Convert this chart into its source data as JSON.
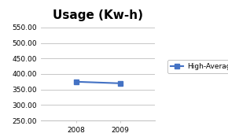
{
  "title": "Usage (Kw-h)",
  "x": [
    2008,
    2009
  ],
  "y": [
    375,
    370
  ],
  "line_color": "#4472C4",
  "marker": "s",
  "marker_size": 4,
  "legend_label": "High-Average-Low",
  "xlim": [
    2007.2,
    2009.8
  ],
  "ylim": [
    250,
    550
  ],
  "yticks": [
    250,
    300,
    350,
    400,
    450,
    500,
    550
  ],
  "ytick_labels": [
    "250.00",
    "300.00",
    "350.00",
    "400.00",
    "450.00",
    "500.00",
    "550.00"
  ],
  "xticks": [
    2008,
    2009
  ],
  "title_fontsize": 11,
  "tick_fontsize": 6.5,
  "legend_fontsize": 6.5,
  "bg_color": "#FFFFFF",
  "plot_bg_color": "#FFFFFF",
  "grid_color": "#BEBEBE"
}
